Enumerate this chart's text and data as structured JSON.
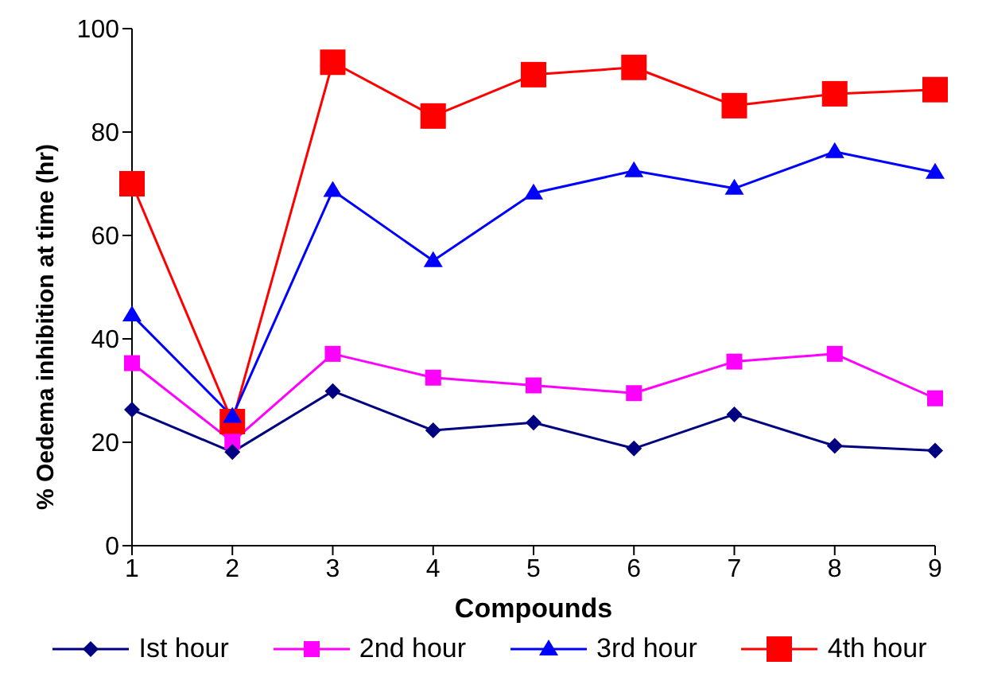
{
  "chart_data": {
    "type": "line",
    "xlabel": "Compounds",
    "ylabel": "% Oedema inhibition at time (hr)",
    "categories": [
      "1",
      "2",
      "3",
      "4",
      "5",
      "6",
      "7",
      "8",
      "9"
    ],
    "ylim": [
      0,
      100
    ],
    "yticks": [
      0,
      20,
      40,
      60,
      80,
      100
    ],
    "grid": false,
    "legend": "bottom",
    "series": [
      {
        "name": "Ist hour",
        "color": "#000080",
        "marker": "diamond",
        "values": [
          26.3,
          18.1,
          29.9,
          22.3,
          23.8,
          18.8,
          25.4,
          19.3,
          18.4
        ]
      },
      {
        "name": "2nd hour",
        "color": "#ff00ff",
        "marker": "square",
        "values": [
          35.3,
          20.1,
          37.1,
          32.5,
          31.0,
          29.5,
          35.6,
          37.1,
          28.5
        ]
      },
      {
        "name": "3rd hour",
        "color": "#0000ff",
        "marker": "triangle",
        "values": [
          44.6,
          25.0,
          68.7,
          55.1,
          68.2,
          72.5,
          69.1,
          76.2,
          72.2
        ]
      },
      {
        "name": "4th hour",
        "color": "#ff0000",
        "marker": "square",
        "values": [
          70.0,
          24.0,
          93.5,
          83.1,
          91.1,
          92.5,
          85.1,
          87.4,
          88.2
        ]
      }
    ]
  }
}
